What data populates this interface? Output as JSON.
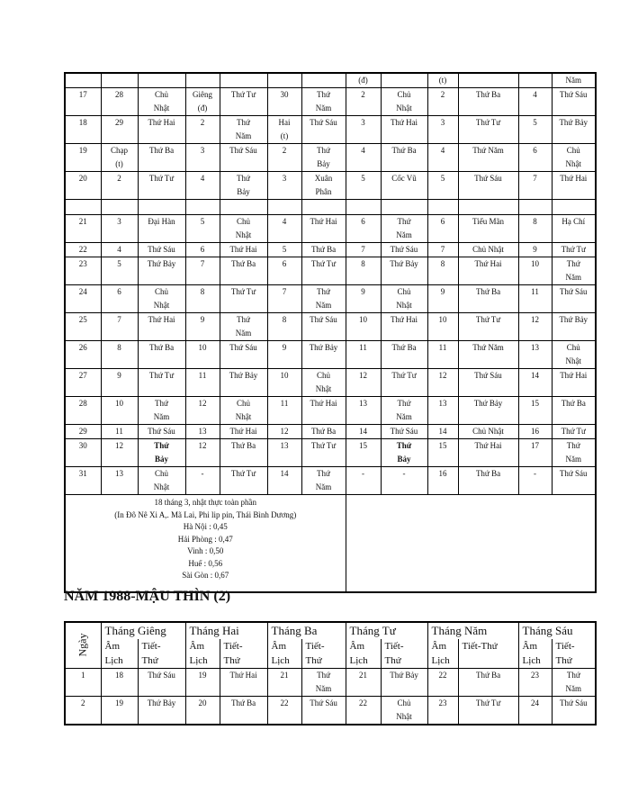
{
  "top_table": {
    "partial_row": [
      "",
      "",
      "",
      "",
      "",
      "",
      "",
      "(đ)",
      "",
      "(t)",
      "",
      "",
      "Năm"
    ],
    "rows": [
      [
        "17",
        "28",
        "Chủ\nNhật",
        "Giêng\n(đ)",
        "Thứ Tư",
        "30",
        "Thứ\nNăm",
        "2",
        "Chủ\nNhật",
        "2",
        "Thứ Ba",
        "4",
        "Thứ Sáu"
      ],
      [
        "18",
        "29",
        "Thứ Hai",
        "2",
        "Thứ\nNăm",
        "Hai\n(t)",
        "Thứ Sáu",
        "3",
        "Thứ Hai",
        "3",
        "Thứ Tư",
        "5",
        "Thứ Bảy"
      ],
      [
        "19",
        "Chạp\n(t)",
        "Thứ Ba",
        "3",
        "Thứ Sáu",
        "2",
        "Thứ\nBảy",
        "4",
        "Thứ Ba",
        "4",
        "Thứ Năm",
        "6",
        "Chủ\nNhật"
      ],
      [
        "20",
        "2",
        "Thứ Tư",
        "4",
        "Thứ\nBảy",
        "3",
        "Xuân\nPhân",
        "5",
        "Cốc Vũ",
        "5",
        "Thứ Sáu",
        "7",
        "Thứ Hai"
      ],
      [
        "",
        "",
        "",
        "",
        "",
        "",
        "",
        "",
        "",
        "",
        "",
        "",
        ""
      ],
      [
        "21",
        "3",
        "Đại Hàn",
        "5",
        "Chủ\nNhật",
        "4",
        "Thứ Hai",
        "6",
        "Thứ\nNăm",
        "6",
        "Tiểu Mãn",
        "8",
        "Hạ Chí"
      ],
      [
        "22",
        "4",
        "Thứ Sáu",
        "6",
        "Thứ Hai",
        "5",
        "Thứ Ba",
        "7",
        "Thứ Sáu",
        "7",
        "Chủ Nhật",
        "9",
        "Thứ Tư"
      ],
      [
        "23",
        "5",
        "Thứ Bảy",
        "7",
        "Thứ Ba",
        "6",
        "Thứ Tư",
        "8",
        "Thứ Bảy",
        "8",
        "Thứ Hai",
        "10",
        "Thứ\nNăm"
      ],
      [
        "24",
        "6",
        "Chủ\nNhật",
        "8",
        "Thứ Tư",
        "7",
        "Thứ\nNăm",
        "9",
        "Chủ\nNhật",
        "9",
        "Thứ Ba",
        "11",
        "Thứ Sáu"
      ],
      [
        "25",
        "7",
        "Thứ Hai",
        "9",
        "Thứ\nNăm",
        "8",
        "Thứ Sáu",
        "10",
        "Thứ Hai",
        "10",
        "Thứ Tư",
        "12",
        "Thứ Bảy"
      ],
      [
        "26",
        "8",
        "Thứ Ba",
        "10",
        "Thứ Sáu",
        "9",
        "Thứ Bảy",
        "11",
        "Thứ Ba",
        "11",
        "Thứ Năm",
        "13",
        "Chủ\nNhật"
      ],
      [
        "27",
        "9",
        "Thứ Tư",
        "11",
        "Thứ Bảy",
        "10",
        "Chủ\nNhật",
        "12",
        "Thứ Tư",
        "12",
        "Thứ Sáu",
        "14",
        "Thứ Hai"
      ],
      [
        "28",
        "10",
        "Thứ\nNăm",
        "12",
        "Chủ\nNhật",
        "11",
        "Thứ Hai",
        "13",
        "Thứ\nNăm",
        "13",
        "Thứ Bảy",
        "15",
        "Thứ Ba"
      ],
      [
        "29",
        "11",
        "Thứ Sáu",
        "13",
        "Thứ Hai",
        "12",
        "Thứ Ba",
        "14",
        "Thứ Sáu",
        "14",
        "Chủ Nhật",
        "16",
        "Thứ Tư"
      ],
      [
        "30",
        "12",
        "Thứ\nBảy",
        "12",
        "Thứ Ba",
        "13",
        "Thứ Tư",
        "15",
        "Thứ\nBảy",
        "15",
        "Thứ Hai",
        "17",
        "Thứ\nNăm"
      ],
      [
        "31",
        "13",
        "Chủ\nNhật",
        "-",
        "Thứ Tư",
        "14",
        "Thứ\nNăm",
        "-",
        "-",
        "16",
        "Thứ Ba",
        "-",
        "Thứ Sáu"
      ]
    ],
    "bold_cells": [
      [
        14,
        2
      ],
      [
        14,
        8
      ]
    ],
    "note_lines": [
      "18 tháng 3, nhật thực toàn phần",
      "(In Đô Nê Xi A,. Mã  Lai, Phi lip pin, Thái Bình Dương)",
      "Hà Nội : 0,45",
      "Hải Phòng : 0,47",
      "Vinh : 0,50",
      "Huế : 0,56",
      "Sài Gòn : 0,67"
    ]
  },
  "heading": "NĂM 1988-MẬU THÌN (2)",
  "bottom_table": {
    "day_header": "Ngày",
    "months": [
      "Tháng Giêng",
      "Tháng Hai",
      "Tháng Ba",
      "Tháng Tư",
      "Tháng Năm",
      "Tháng Sáu"
    ],
    "sub_headers": [
      [
        "Âm\nLịch",
        "Tiết-\nThứ"
      ],
      [
        "Âm\nLịch",
        "Tiết-\nThứ"
      ],
      [
        "Âm\nLịch",
        "Tiết-\nThứ"
      ],
      [
        "Âm\nLịch",
        "Tiết-\nThứ"
      ],
      [
        "Âm\nLịch",
        "Tiết-Thứ"
      ],
      [
        "Âm\nLịch",
        "Tiết-\nThứ"
      ]
    ],
    "rows": [
      [
        "1",
        "18",
        "Thứ Sáu",
        "19",
        "Thứ Hai",
        "21",
        "Thứ\nNăm",
        "21",
        "Thứ Bảy",
        "22",
        "Thứ Ba",
        "23",
        "Thứ\nNăm"
      ],
      [
        "2",
        "19",
        "Thứ Bảy",
        "20",
        "Thứ Ba",
        "22",
        "Thứ Sáu",
        "22",
        "Chủ\nNhật",
        "23",
        "Thứ Tư",
        "24",
        "Thứ Sáu"
      ]
    ]
  }
}
